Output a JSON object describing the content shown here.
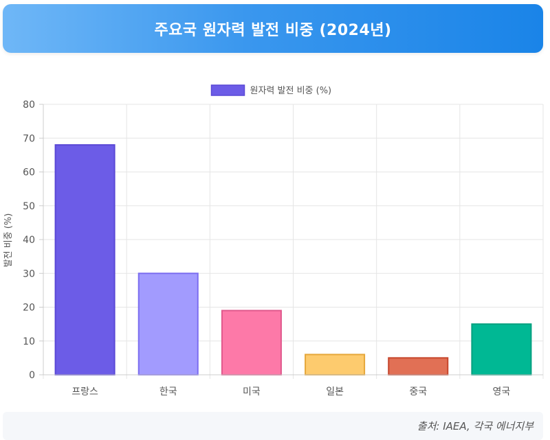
{
  "header": {
    "title": "주요국 원자력 발전 비중 (2024년)"
  },
  "footer": {
    "source": "출처: IAEA, 각국 에너지부"
  },
  "colors": {
    "header_gradient": [
      "#6fb7f7",
      "#1a84e8"
    ],
    "bars": [
      "#6c5ce7",
      "#a29bfe",
      "#fd79a8",
      "#fdcb6e",
      "#e17055",
      "#00b894"
    ],
    "bar_borders": [
      "#5a48d6",
      "#7b6df0",
      "#e0588c",
      "#e5a73a",
      "#c6452b",
      "#00a07f"
    ]
  },
  "chart_data": {
    "type": "bar",
    "title": "",
    "legend": {
      "label": "원자력 발전 비중 (%)",
      "position": "top"
    },
    "categories": [
      "프랑스",
      "한국",
      "미국",
      "일본",
      "중국",
      "영국"
    ],
    "series": [
      {
        "name": "원자력 발전 비중 (%)",
        "values": [
          68,
          30,
          19,
          6,
          5,
          15
        ]
      }
    ],
    "xlabel": "",
    "ylabel": "발전 비중 (%)",
    "ylim": [
      0,
      80
    ],
    "yticks": [
      0,
      10,
      20,
      30,
      40,
      50,
      60,
      70,
      80
    ],
    "grid": true
  }
}
